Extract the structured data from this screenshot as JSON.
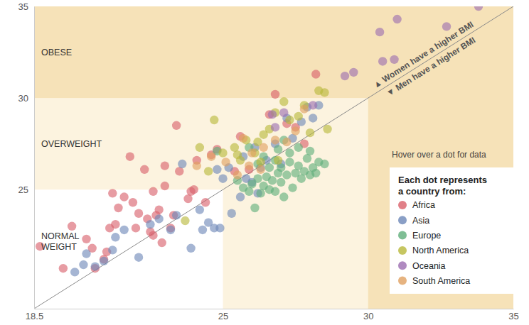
{
  "chart_data": {
    "type": "scatter",
    "xlim": [
      18.5,
      35
    ],
    "ylim": [
      18.5,
      35
    ],
    "xticks": [
      18.5,
      25,
      30,
      35
    ],
    "yticks": [
      25,
      30,
      35
    ],
    "zones": [
      {
        "label": "NORMAL WEIGHT",
        "from": 18.5,
        "to": 25
      },
      {
        "label": "OVERWEIGHT",
        "from": 25,
        "to": 30
      },
      {
        "label": "OBESE",
        "from": 30,
        "to": 35
      }
    ],
    "annotations": [
      "▲ Women have a higher BMI",
      "▼ Men have a higher BMI",
      "Hover over a dot for data"
    ],
    "legend_title": "Each dot represents a country from:",
    "legend": "right",
    "series": [
      {
        "name": "Africa",
        "color": "#d9606a",
        "x": [
          18.7,
          19.5,
          19.8,
          20.3,
          20.5,
          20.6,
          20.9,
          21.0,
          21.1,
          21.3,
          21.4,
          21.2,
          21.6,
          21.8,
          21.9,
          22.0,
          22.1,
          22.3,
          22.4,
          22.6,
          22.6,
          22.7,
          22.8,
          22.9,
          23.0,
          23.0,
          23.2,
          23.3,
          23.4,
          23.5,
          23.8,
          23.9,
          24.0,
          24.1,
          24.4,
          24.6,
          24.8,
          25.4,
          25.6,
          26.8,
          26.6,
          27.2,
          27.5,
          28.2,
          27.8,
          25.9,
          22.5
        ],
        "values": [
          21.9,
          20.7,
          23.0,
          22.3,
          21.8,
          20.7,
          21.2,
          21.6,
          22.9,
          23.1,
          24.0,
          24.8,
          24.6,
          26.8,
          24.3,
          22.9,
          23.7,
          26.1,
          23.4,
          22.5,
          24.9,
          23.6,
          23.9,
          22.1,
          26.3,
          25.2,
          22.9,
          23.6,
          28.5,
          26.0,
          24.5,
          24.9,
          25.0,
          26.6,
          24.3,
          26.9,
          27.2,
          26.0,
          27.9,
          30.2,
          29.1,
          28.6,
          28.4,
          31.3,
          27.5,
          26.1,
          22.7
        ]
      },
      {
        "name": "Asia",
        "color": "#6d87b8",
        "x": [
          19.9,
          20.2,
          20.3,
          20.6,
          20.9,
          21.2,
          21.3,
          21.6,
          22.1,
          22.5,
          22.8,
          23.2,
          23.4,
          23.6,
          23.9,
          24.2,
          24.3,
          24.5,
          24.7,
          24.9,
          25.0,
          25.2,
          25.3,
          25.6,
          25.8,
          26.0,
          26.2,
          26.3,
          26.5,
          26.8,
          27.0,
          27.2,
          27.4,
          27.7,
          27.9,
          28.1,
          28.3,
          26.1,
          24.8,
          25.7
        ],
        "values": [
          20.5,
          20.9,
          21.5,
          20.8,
          21.1,
          21.7,
          22.4,
          22.8,
          21.3,
          23.1,
          23.4,
          22.8,
          23.6,
          26.4,
          21.8,
          23.9,
          22.8,
          23.2,
          22.9,
          22.9,
          25.6,
          26.2,
          23.7,
          24.6,
          25.6,
          25.4,
          24.8,
          26.2,
          26.6,
          27.5,
          26.4,
          28.9,
          27.8,
          28.7,
          29.5,
          28.9,
          29.6,
          27.3,
          26.1,
          26.8
        ]
      },
      {
        "name": "Europe",
        "color": "#5fae7a",
        "x": [
          24.8,
          25.9,
          26.0,
          26.1,
          26.2,
          26.3,
          26.4,
          26.5,
          26.6,
          26.6,
          26.7,
          26.8,
          26.9,
          27.0,
          27.0,
          27.1,
          27.2,
          27.3,
          27.4,
          27.5,
          27.6,
          27.7,
          27.8,
          27.9,
          28.0,
          28.1,
          28.2,
          28.3,
          26.4,
          26.9,
          25.5,
          25.7,
          26.2,
          27.3,
          27.6,
          28.0,
          28.5,
          26.8,
          27.1,
          25.9
        ],
        "values": [
          27.1,
          24.9,
          25.3,
          24.0,
          25.6,
          24.8,
          25.2,
          25.7,
          25.0,
          26.2,
          25.5,
          24.9,
          25.9,
          25.4,
          26.2,
          24.6,
          25.8,
          26.5,
          25.1,
          25.9,
          26.3,
          25.6,
          26.0,
          26.7,
          25.8,
          26.2,
          25.9,
          26.5,
          26.8,
          27.2,
          25.5,
          25.1,
          26.4,
          27.0,
          27.3,
          27.1,
          26.4,
          26.6,
          27.7,
          27.3
        ]
      },
      {
        "name": "North America",
        "color": "#b8b83a",
        "x": [
          23.7,
          24.7,
          24.2,
          25.0,
          25.4,
          25.6,
          25.8,
          26.1,
          26.2,
          26.4,
          26.6,
          26.8,
          27.1,
          27.3,
          27.6,
          28.0,
          28.3,
          28.5,
          28.6,
          25.5,
          26.9,
          24.5,
          27.8,
          26.3
        ],
        "values": [
          23.3,
          28.8,
          27.3,
          27.0,
          27.3,
          26.6,
          27.7,
          27.0,
          27.6,
          28.0,
          28.3,
          29.2,
          29.8,
          28.8,
          29.0,
          28.1,
          30.4,
          30.3,
          28.3,
          26.9,
          26.6,
          26.0,
          29.6,
          26.5
        ]
      },
      {
        "name": "Oceania",
        "color": "#9b6db0",
        "x": [
          26.8,
          27.1,
          28.1,
          29.2,
          29.5,
          30.5,
          30.4,
          30.9,
          31.0,
          32.7,
          33.8,
          26.7
        ],
        "values": [
          28.4,
          29.2,
          29.6,
          31.2,
          31.4,
          32.0,
          33.6,
          32.1,
          34.3,
          33.9,
          35.0,
          29.1
        ]
      },
      {
        "name": "South America",
        "color": "#e0a060",
        "x": [
          24.1,
          24.6,
          25.1,
          25.5,
          25.7,
          25.9,
          26.0,
          26.3,
          26.8,
          27.2,
          27.5,
          27.8,
          26.4
        ],
        "values": [
          26.3,
          26.8,
          26.5,
          25.8,
          27.8,
          26.3,
          27.0,
          26.1,
          27.7,
          27.6,
          28.2,
          29.4,
          27.3
        ]
      }
    ]
  }
}
